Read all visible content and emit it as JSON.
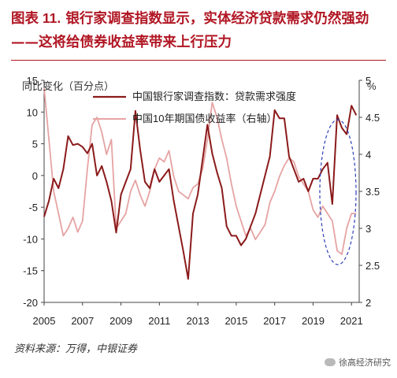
{
  "header": {
    "figure_number": "图表 11.",
    "title": "银行家调查指数显示，实体经济贷款需求仍然强劲——这将给债券收益率带来上行压力"
  },
  "footer": {
    "source": "资料来源：万得，中银证券",
    "watermark": "徐高经济研究"
  },
  "colors": {
    "title": "#b01623",
    "series_primary": "#8b1a1a",
    "series_secondary": "#e6a3a3",
    "highlight_ellipse": "#2c3fb8"
  },
  "chart_data": {
    "type": "line",
    "ylabel_left": "同比变化（百分点）",
    "ylabel_right": "%",
    "xlim": [
      2005,
      2021.4
    ],
    "ylim_left": [
      -20,
      15
    ],
    "ylim_right": [
      2,
      5
    ],
    "x_ticks": [
      2005,
      2007,
      2009,
      2011,
      2013,
      2015,
      2017,
      2019,
      2021
    ],
    "y_ticks_left": [
      -20,
      -15,
      -10,
      -5,
      0,
      5,
      10,
      15
    ],
    "y_ticks_right": [
      2,
      2.5,
      3,
      3.5,
      4,
      4.5,
      5
    ],
    "grid": false,
    "legend_position": "top",
    "series": [
      {
        "name": "中国银行家调查指数：贷款需求强度",
        "axis": "left",
        "color": "#8b1a1a",
        "x": [
          2005.0,
          2005.25,
          2005.5,
          2005.75,
          2006.0,
          2006.25,
          2006.5,
          2006.75,
          2007.0,
          2007.25,
          2007.5,
          2007.75,
          2008.0,
          2008.25,
          2008.5,
          2008.75,
          2009.0,
          2009.25,
          2009.5,
          2009.75,
          2010.0,
          2010.25,
          2010.5,
          2010.75,
          2011.0,
          2011.25,
          2011.5,
          2011.75,
          2012.0,
          2012.25,
          2012.5,
          2012.75,
          2013.0,
          2013.25,
          2013.5,
          2013.75,
          2014.0,
          2014.25,
          2014.5,
          2014.75,
          2015.0,
          2015.25,
          2015.5,
          2015.75,
          2016.0,
          2016.25,
          2016.5,
          2016.75,
          2017.0,
          2017.25,
          2017.5,
          2017.75,
          2018.0,
          2018.25,
          2018.5,
          2018.75,
          2019.0,
          2019.25,
          2019.5,
          2019.75,
          2020.0,
          2020.25,
          2020.5,
          2020.75,
          2021.0,
          2021.25
        ],
        "values": [
          -6.5,
          -4,
          -0.5,
          -2,
          1,
          6.2,
          4.8,
          5,
          4.5,
          3.5,
          5,
          0,
          1.5,
          -1,
          -4,
          -9,
          -3,
          -1,
          1,
          10.2,
          4,
          -1,
          -2,
          1,
          -1,
          0,
          1,
          -4,
          -8,
          -12,
          -16.3,
          -6,
          -3,
          2.5,
          8,
          3.5,
          0.5,
          -2,
          -8,
          -9.5,
          -9.5,
          -11,
          -10,
          -8,
          -6,
          -3,
          0,
          3,
          10.3,
          9,
          9,
          3,
          1,
          -1,
          -0.5,
          -2.5,
          -0.5,
          -0.5,
          1,
          2,
          -4.5,
          9.5,
          7.5,
          6.5,
          11,
          9.5
        ]
      },
      {
        "name": "中国10年期国债收益率（右轴）",
        "axis": "right",
        "color": "#e6a3a3",
        "x": [
          2005.0,
          2005.25,
          2005.5,
          2005.75,
          2006.0,
          2006.25,
          2006.5,
          2006.75,
          2007.0,
          2007.25,
          2007.5,
          2007.75,
          2008.0,
          2008.25,
          2008.5,
          2008.75,
          2009.0,
          2009.25,
          2009.5,
          2009.75,
          2010.0,
          2010.25,
          2010.5,
          2010.75,
          2011.0,
          2011.25,
          2011.5,
          2011.75,
          2012.0,
          2012.25,
          2012.5,
          2012.75,
          2013.0,
          2013.25,
          2013.5,
          2013.75,
          2014.0,
          2014.25,
          2014.5,
          2014.75,
          2015.0,
          2015.25,
          2015.5,
          2015.75,
          2016.0,
          2016.25,
          2016.5,
          2016.75,
          2017.0,
          2017.25,
          2017.5,
          2017.75,
          2018.0,
          2018.25,
          2018.5,
          2018.75,
          2019.0,
          2019.25,
          2019.5,
          2019.75,
          2020.0,
          2020.25,
          2020.5,
          2020.75,
          2021.0,
          2021.25
        ],
        "values": [
          4.9,
          4.2,
          3.5,
          3.2,
          2.9,
          3.0,
          3.15,
          2.95,
          3.1,
          3.8,
          4.4,
          4.5,
          4.3,
          4.0,
          4.2,
          3.0,
          3.1,
          3.2,
          3.5,
          3.65,
          3.45,
          3.3,
          3.5,
          3.8,
          3.95,
          3.9,
          4.05,
          3.7,
          3.5,
          3.45,
          3.4,
          3.55,
          3.6,
          3.8,
          4.2,
          4.7,
          4.5,
          4.2,
          3.95,
          3.6,
          3.3,
          3.1,
          2.9,
          3.0,
          2.85,
          2.95,
          3.05,
          3.35,
          3.5,
          3.7,
          3.85,
          3.95,
          3.9,
          3.7,
          3.6,
          3.5,
          3.25,
          3.15,
          3.3,
          3.2,
          3.1,
          2.7,
          2.65,
          3.0,
          3.2,
          3.2
        ]
      }
    ]
  }
}
